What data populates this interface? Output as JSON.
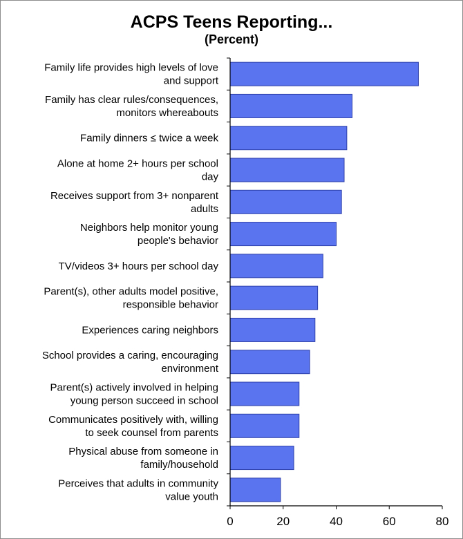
{
  "chart_data": {
    "type": "bar",
    "orientation": "horizontal",
    "title": "ACPS Teens Reporting...",
    "subtitle": "(Percent)",
    "xlabel": "",
    "ylabel": "",
    "xlim": [
      0,
      80
    ],
    "xticks": [
      0,
      20,
      40,
      60,
      80
    ],
    "grid": false,
    "bar_color": "#5a74f0",
    "categories": [
      [
        "Family life provides high levels of love",
        "and support"
      ],
      [
        "Family has clear rules/consequences,",
        "monitors whereabouts"
      ],
      [
        "Family dinners ≤ twice a week"
      ],
      [
        "Alone at home 2+ hours per school",
        "day"
      ],
      [
        "Receives support from 3+ nonparent",
        "adults"
      ],
      [
        "Neighbors help monitor young",
        "people's behavior"
      ],
      [
        "TV/videos 3+ hours per school day"
      ],
      [
        "Parent(s), other adults model positive,",
        "responsible behavior"
      ],
      [
        "Experiences caring neighbors"
      ],
      [
        "School provides a caring, encouraging",
        "environment"
      ],
      [
        "Parent(s) actively involved in helping",
        "young person succeed in school"
      ],
      [
        "Communicates positively with, willing",
        "to seek counsel from parents"
      ],
      [
        "Physical abuse from someone in",
        "family/household"
      ],
      [
        "Perceives that adults in community",
        "value youth"
      ]
    ],
    "values": [
      71,
      46,
      44,
      43,
      42,
      40,
      35,
      33,
      32,
      30,
      26,
      26,
      24,
      19
    ]
  }
}
